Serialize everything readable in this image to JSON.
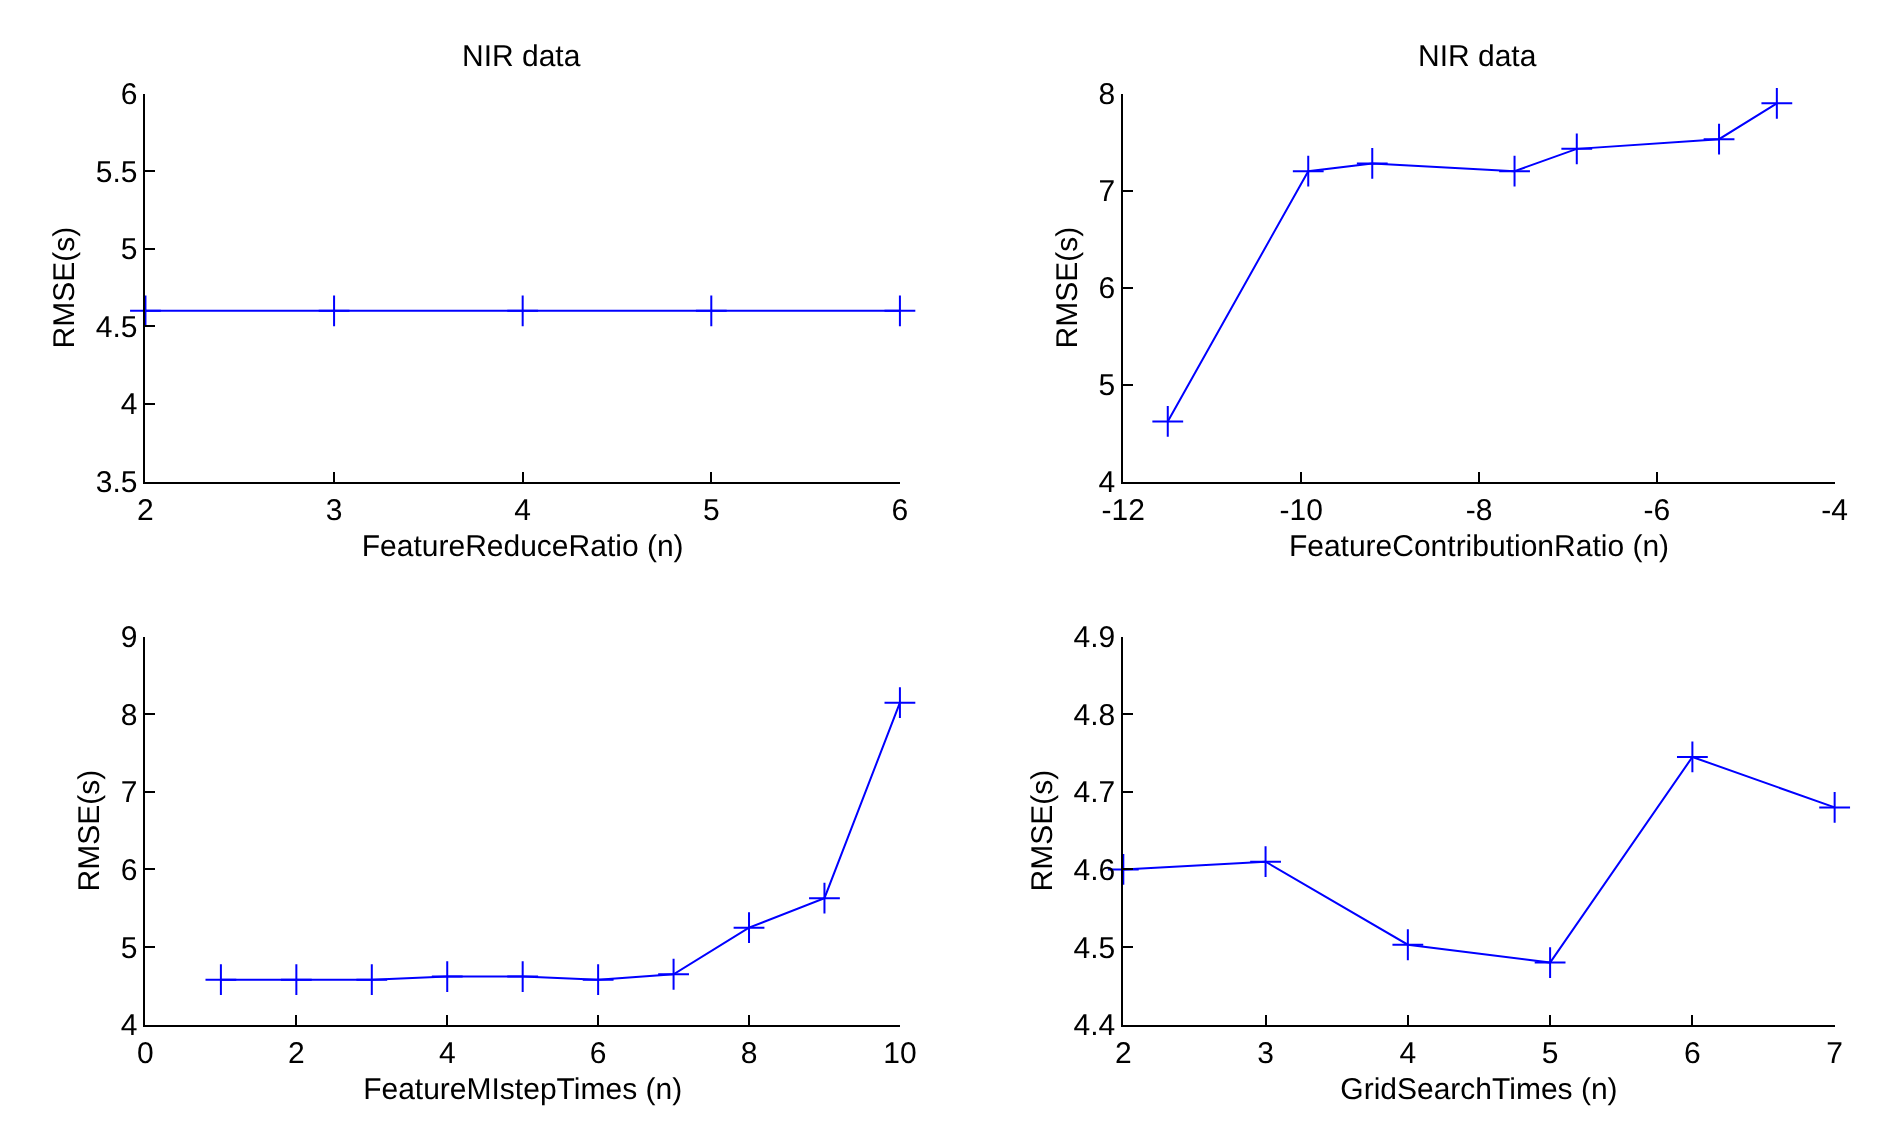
{
  "chart_data": [
    {
      "type": "line",
      "title": "NIR data",
      "xlabel": "FeatureReduceRatio (n)",
      "ylabel": "RMSE(s)",
      "marker": "cross",
      "line_style": "solid",
      "x": [
        2,
        3,
        4,
        5,
        6
      ],
      "xlim": [
        2,
        6
      ],
      "xticks": [
        2,
        3,
        4,
        5,
        6
      ],
      "ylim": [
        3.5,
        6
      ],
      "yticks": [
        3.5,
        4,
        4.5,
        5,
        5.5,
        6
      ],
      "series": [
        {
          "color": "#0000ff",
          "values": [
            4.6,
            4.6,
            4.6,
            4.6,
            4.6
          ]
        }
      ]
    },
    {
      "type": "line",
      "title": "NIR data",
      "xlabel": "FeatureContributionRatio (n)",
      "ylabel": "RMSE(s)",
      "marker": "cross",
      "line_style": "solid",
      "x": [
        -11.5,
        -9.92,
        -9.2,
        -7.6,
        -6.9,
        -5.3,
        -4.65
      ],
      "xlim": [
        -12,
        -4
      ],
      "xticks": [
        -12,
        -10,
        -8,
        -6,
        -4
      ],
      "ylim": [
        4,
        8
      ],
      "yticks": [
        4,
        5,
        6,
        7,
        8
      ],
      "series": [
        {
          "color": "#0000ff",
          "values": [
            4.62,
            7.2,
            7.28,
            7.2,
            7.43,
            7.53,
            7.9
          ]
        }
      ]
    },
    {
      "type": "line",
      "xlabel": "FeatureMIstepTimes (n)",
      "ylabel": "RMSE(s)",
      "marker": "cross",
      "line_style": "solid",
      "x": [
        1,
        2,
        3,
        4,
        5,
        6,
        7,
        8,
        9,
        10
      ],
      "xlim": [
        0,
        10
      ],
      "xticks": [
        0,
        2,
        4,
        6,
        8,
        10
      ],
      "ylim": [
        4,
        9
      ],
      "yticks": [
        4,
        5,
        6,
        7,
        8,
        9
      ],
      "series": [
        {
          "color": "#0000ff",
          "values": [
            4.58,
            4.58,
            4.58,
            4.62,
            4.62,
            4.58,
            4.65,
            5.25,
            5.63,
            8.15
          ]
        }
      ]
    },
    {
      "type": "line",
      "xlabel": "GridSearchTimes (n)",
      "ylabel": "RMSE(s)",
      "marker": "cross",
      "line_style": "solid",
      "x": [
        2,
        3,
        4,
        5,
        6,
        7
      ],
      "xlim": [
        2,
        7
      ],
      "xticks": [
        2,
        3,
        4,
        5,
        6,
        7
      ],
      "ylim": [
        4.4,
        4.9
      ],
      "yticks": [
        {
          "value": 4.4,
          "label": "4.4"
        },
        {
          "value": 4.5,
          "label": "4.5"
        },
        {
          "value": 4.6,
          "label": "4.6"
        },
        {
          "value": 4.7,
          "label": "4.7"
        },
        {
          "value": 4.8,
          "label": "4.8"
        },
        {
          "value": 4.9,
          "label": "4.9"
        }
      ],
      "series": [
        {
          "color": "#0000ff",
          "values": [
            4.6,
            4.61,
            4.503,
            4.48,
            4.745,
            4.68
          ]
        }
      ]
    }
  ]
}
